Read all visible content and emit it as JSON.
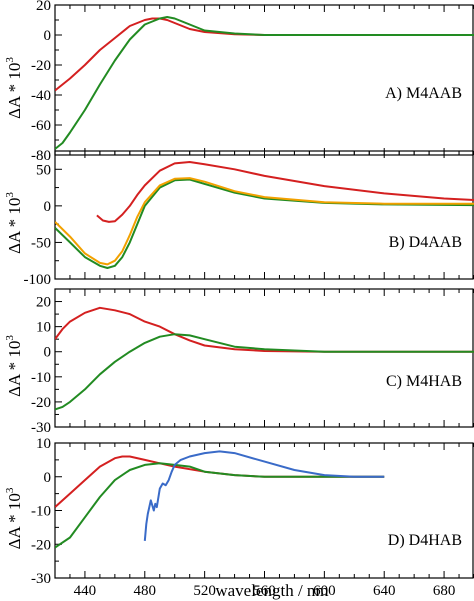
{
  "chart_data": {
    "type": "line",
    "xlabel": "wavelength / nm",
    "xlim": [
      420,
      700
    ],
    "xticks": [
      440,
      480,
      520,
      560,
      600,
      640,
      680
    ],
    "xminor_step": 10,
    "ylabel_main": "ΔA * 10",
    "ylabel_sup": "3",
    "colors": {
      "red": "#d42020",
      "green": "#228b22",
      "orange": "#f2a100",
      "blue": "#3a6bc8"
    },
    "panels": [
      {
        "label": "A)  M4AAB",
        "ylim": [
          -80,
          20
        ],
        "yticks": [
          20,
          0,
          -20,
          -40,
          -60,
          -80
        ],
        "yminor_step": 10,
        "series": [
          {
            "color": "red",
            "x": [
              420,
              425,
              430,
              440,
              450,
              460,
              470,
              480,
              485,
              490,
              495,
              500,
              510,
              520,
              540,
              560,
              600,
              640,
              700
            ],
            "y": [
              -37,
              -33,
              -29,
              -20,
              -10,
              -2,
              6,
              10,
              11,
              11,
              10,
              8,
              4,
              2,
              0.5,
              0,
              0,
              0,
              0
            ]
          },
          {
            "color": "green",
            "x": [
              420,
              425,
              430,
              440,
              450,
              460,
              470,
              480,
              490,
              495,
              500,
              505,
              510,
              520,
              540,
              560,
              600,
              700
            ],
            "y": [
              -76,
              -72,
              -65,
              -50,
              -33,
              -17,
              -3,
              7,
              11,
              12,
              11,
              9,
              7,
              3,
              1,
              0,
              0,
              0
            ]
          }
        ]
      },
      {
        "label": "B)  D4AAB",
        "ylim": [
          -100,
          75
        ],
        "yticks": [
          50,
          0,
          -50,
          -100
        ],
        "yminor_step": 25,
        "series": [
          {
            "color": "red",
            "x": [
              448,
              452,
              456,
              460,
              465,
              470,
              475,
              480,
              490,
              500,
              510,
              520,
              540,
              560,
              600,
              640,
              680,
              700
            ],
            "y": [
              -13,
              -20,
              -22,
              -21,
              -12,
              0,
              15,
              28,
              48,
              58,
              60,
              57,
              50,
              41,
              27,
              17,
              10,
              8
            ]
          },
          {
            "color": "green",
            "x": [
              420,
              430,
              440,
              450,
              455,
              460,
              465,
              470,
              475,
              480,
              490,
              500,
              510,
              520,
              540,
              560,
              600,
              640,
              700
            ],
            "y": [
              -30,
              -50,
              -70,
              -82,
              -85,
              -82,
              -70,
              -50,
              -25,
              0,
              25,
              35,
              36,
              30,
              18,
              10,
              4,
              2,
              1
            ]
          },
          {
            "color": "orange",
            "x": [
              420,
              430,
              440,
              450,
              455,
              460,
              465,
              470,
              475,
              480,
              490,
              500,
              510,
              520,
              540,
              560,
              600,
              640,
              700
            ],
            "y": [
              -22,
              -42,
              -65,
              -78,
              -80,
              -75,
              -62,
              -40,
              -15,
              5,
              28,
              37,
              38,
              33,
              20,
              12,
              5,
              3,
              3
            ]
          }
        ]
      },
      {
        "label": "C)  M4HAB",
        "ylim": [
          -30,
          25
        ],
        "yticks": [
          20,
          10,
          0,
          -10,
          -20,
          -30
        ],
        "yminor_step": 5,
        "series": [
          {
            "color": "red",
            "x": [
              420,
              425,
              430,
              440,
              450,
              460,
              470,
              480,
              490,
              500,
              510,
              520,
              540,
              560,
              600,
              700
            ],
            "y": [
              5,
              9,
              12,
              15.5,
              17.5,
              16.5,
              15,
              12,
              10,
              7,
              4.5,
              2.5,
              1,
              0.3,
              0,
              0
            ]
          },
          {
            "color": "green",
            "x": [
              420,
              425,
              430,
              440,
              450,
              460,
              470,
              480,
              490,
              500,
              510,
              520,
              540,
              560,
              600,
              700
            ],
            "y": [
              -23,
              -22,
              -20,
              -15,
              -9,
              -4,
              0,
              3.5,
              6,
              7,
              6.5,
              5,
              2,
              1,
              0,
              0
            ]
          }
        ]
      },
      {
        "label": "D)  D4HAB",
        "ylim": [
          -30,
          10
        ],
        "yticks": [
          10,
          0,
          -10,
          -20,
          -30
        ],
        "yminor_step": 5,
        "series": [
          {
            "color": "red",
            "x": [
              420,
              430,
              440,
              450,
              460,
              465,
              470,
              480,
              490,
              500,
              520,
              540,
              560,
              600,
              640
            ],
            "y": [
              -9,
              -5,
              -1,
              3,
              5.5,
              6,
              6,
              5,
              4,
              3,
              1.5,
              0.5,
              0,
              0,
              0
            ]
          },
          {
            "color": "green",
            "x": [
              420,
              430,
              440,
              450,
              460,
              470,
              480,
              490,
              500,
              510,
              520,
              540,
              560,
              600,
              640
            ],
            "y": [
              -21,
              -18,
              -12,
              -6,
              -1,
              2,
              3.5,
              4,
              3.5,
              3,
              1.5,
              0.5,
              0,
              0,
              0
            ]
          },
          {
            "color": "blue",
            "x": [
              480,
              481,
              482,
              484,
              486,
              487,
              488,
              490,
              492,
              494,
              496,
              498,
              500,
              504,
              510,
              520,
              530,
              540,
              560,
              580,
              600,
              620,
              640
            ],
            "y": [
              -19,
              -14,
              -11,
              -7,
              -10,
              -8,
              -9,
              -3.5,
              -2,
              -2.5,
              -1,
              1.5,
              3.5,
              5,
              6,
              7,
              7.5,
              7,
              4.5,
              2,
              0.5,
              0,
              0
            ]
          }
        ]
      }
    ]
  }
}
